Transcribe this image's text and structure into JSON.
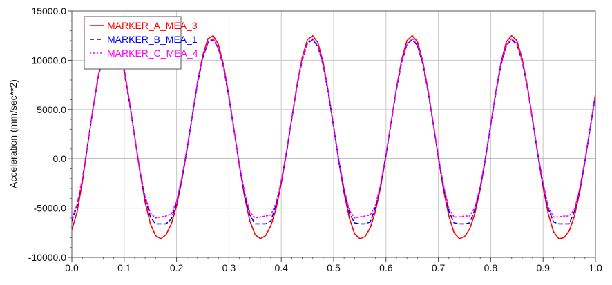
{
  "chart_data": {
    "type": "line",
    "title": "",
    "xlabel": "",
    "ylabel": "Acceleration (mm/sec**2)",
    "xlim": [
      0.0,
      1.0
    ],
    "ylim": [
      -10000.0,
      15000.0
    ],
    "xticks": [
      "0.0",
      "0.1",
      "0.2",
      "0.3",
      "0.4",
      "0.5",
      "0.6",
      "0.7",
      "0.8",
      "0.9",
      "1.0"
    ],
    "yticks": [
      "-10000.0",
      "-5000.0",
      "0.0",
      "5000.0",
      "10000.0",
      "15000.0"
    ],
    "xtick_values": [
      0.0,
      0.1,
      0.2,
      0.3,
      0.4,
      0.5,
      0.6,
      0.7,
      0.8,
      0.9,
      1.0
    ],
    "ytick_values": [
      -10000.0,
      -5000.0,
      0.0,
      5000.0,
      10000.0,
      15000.0
    ],
    "grid": true,
    "legend_position": "top-left",
    "x": [
      0.0,
      0.01,
      0.02,
      0.03,
      0.04,
      0.05,
      0.06,
      0.07,
      0.08,
      0.09,
      0.1,
      0.11,
      0.12,
      0.13,
      0.14,
      0.15,
      0.16,
      0.17,
      0.18,
      0.19,
      0.2,
      0.21,
      0.22,
      0.23,
      0.24,
      0.25,
      0.26,
      0.27,
      0.28,
      0.29,
      0.3,
      0.31,
      0.32,
      0.33,
      0.34,
      0.35,
      0.36,
      0.37,
      0.38,
      0.39,
      0.4,
      0.41,
      0.42,
      0.43,
      0.44,
      0.45,
      0.46,
      0.47,
      0.48,
      0.49,
      0.5,
      0.51,
      0.52,
      0.53,
      0.54,
      0.55,
      0.56,
      0.57,
      0.58,
      0.59,
      0.6,
      0.61,
      0.62,
      0.63,
      0.64,
      0.65,
      0.66,
      0.67,
      0.68,
      0.69,
      0.7,
      0.71,
      0.72,
      0.73,
      0.74,
      0.75,
      0.76,
      0.77,
      0.78,
      0.79,
      0.8,
      0.81,
      0.82,
      0.83,
      0.84,
      0.85,
      0.86,
      0.87,
      0.88,
      0.89,
      0.9,
      0.91,
      0.92,
      0.93,
      0.94,
      0.95,
      0.96,
      0.97,
      0.98,
      0.99,
      1.0
    ],
    "series": [
      {
        "name": "MARKER_A_MEA_3",
        "color": "#ff0000",
        "dash": "solid",
        "values": [
          -7200,
          -5400,
          -2400,
          1300,
          5000,
          8300,
          10800,
          12300,
          12500,
          11400,
          9100,
          5900,
          2300,
          -1300,
          -4400,
          -6600,
          -7800,
          -8100,
          -7700,
          -6600,
          -4800,
          -2200,
          900,
          4400,
          7800,
          10500,
          12200,
          12500,
          11600,
          9500,
          6400,
          2900,
          -700,
          -3900,
          -6300,
          -7700,
          -8100,
          -7800,
          -6800,
          -5100,
          -2500,
          600,
          4100,
          7500,
          10300,
          12100,
          12500,
          11800,
          9800,
          6800,
          3300,
          -300,
          -3500,
          -6000,
          -7600,
          -8100,
          -7900,
          -7000,
          -5300,
          -2800,
          300,
          3800,
          7200,
          10100,
          12000,
          12500,
          11900,
          10000,
          7100,
          3700,
          100,
          -3200,
          -5800,
          -7500,
          -8100,
          -7900,
          -7100,
          -5500,
          -3100,
          0,
          3500,
          6900,
          9900,
          11900,
          12500,
          12000,
          10200,
          7400,
          4000,
          400,
          -2900,
          -5600,
          -7400,
          -8100,
          -8000,
          -7300,
          -5800,
          -3400,
          -300,
          3200,
          6600
        ],
        "sample_note": ""
      },
      {
        "name": "MARKER_B_MEA_1",
        "color": "#0000ff",
        "dash": "dashed",
        "values": [
          -6300,
          -4800,
          -2100,
          1400,
          4900,
          8100,
          10500,
          11900,
          12000,
          11000,
          8800,
          5700,
          2200,
          -1200,
          -4000,
          -5900,
          -6600,
          -6600,
          -6600,
          -6100,
          -4500,
          -2000,
          1000,
          4300,
          7600,
          10200,
          11800,
          12100,
          11200,
          9200,
          6200,
          2800,
          -600,
          -3600,
          -5700,
          -6600,
          -6600,
          -6600,
          -6300,
          -4700,
          -2300,
          700,
          4000,
          7300,
          10000,
          11700,
          12100,
          11400,
          9500,
          6600,
          3200,
          -200,
          -3200,
          -5500,
          -6500,
          -6600,
          -6600,
          -6400,
          -4900,
          -2600,
          400,
          3700,
          7000,
          9800,
          11600,
          12100,
          11500,
          9700,
          6900,
          3600,
          200,
          -2900,
          -5300,
          -6500,
          -6600,
          -6600,
          -6500,
          -5100,
          -2900,
          100,
          3400,
          6700,
          9600,
          11500,
          12100,
          11600,
          9900,
          7200,
          3900,
          500,
          -2600,
          -5100,
          -6400,
          -6600,
          -6600,
          -6600,
          -5300,
          -3100,
          -200,
          3100,
          6400
        ],
        "sample_note": ""
      },
      {
        "name": "MARKER_C_MEA_4",
        "color": "#ff00ff",
        "dash": "dotted",
        "values": [
          -6000,
          -4600,
          -2000,
          1400,
          4900,
          8100,
          10600,
          12000,
          12200,
          11100,
          8900,
          5800,
          2300,
          -1100,
          -3800,
          -5500,
          -6000,
          -5900,
          -5800,
          -5600,
          -4300,
          -1900,
          1100,
          4400,
          7700,
          10300,
          11900,
          12200,
          11300,
          9300,
          6300,
          2900,
          -500,
          -3400,
          -5400,
          -6000,
          -5900,
          -5800,
          -5700,
          -4500,
          -2200,
          800,
          4100,
          7400,
          10100,
          11800,
          12200,
          11500,
          9600,
          6700,
          3300,
          -100,
          -3000,
          -5200,
          -6000,
          -5900,
          -5800,
          -5700,
          -4700,
          -2500,
          500,
          3800,
          7100,
          9900,
          11700,
          12200,
          11600,
          9800,
          7000,
          3700,
          300,
          -2700,
          -5000,
          -5900,
          -5900,
          -5800,
          -5800,
          -4900,
          -2800,
          200,
          3500,
          6800,
          9700,
          11600,
          12200,
          11700,
          10000,
          7300,
          4000,
          600,
          -2400,
          -4900,
          -5900,
          -5900,
          -5800,
          -5800,
          -5100,
          -3000,
          -100,
          3200,
          6500
        ],
        "sample_note": ""
      }
    ]
  }
}
